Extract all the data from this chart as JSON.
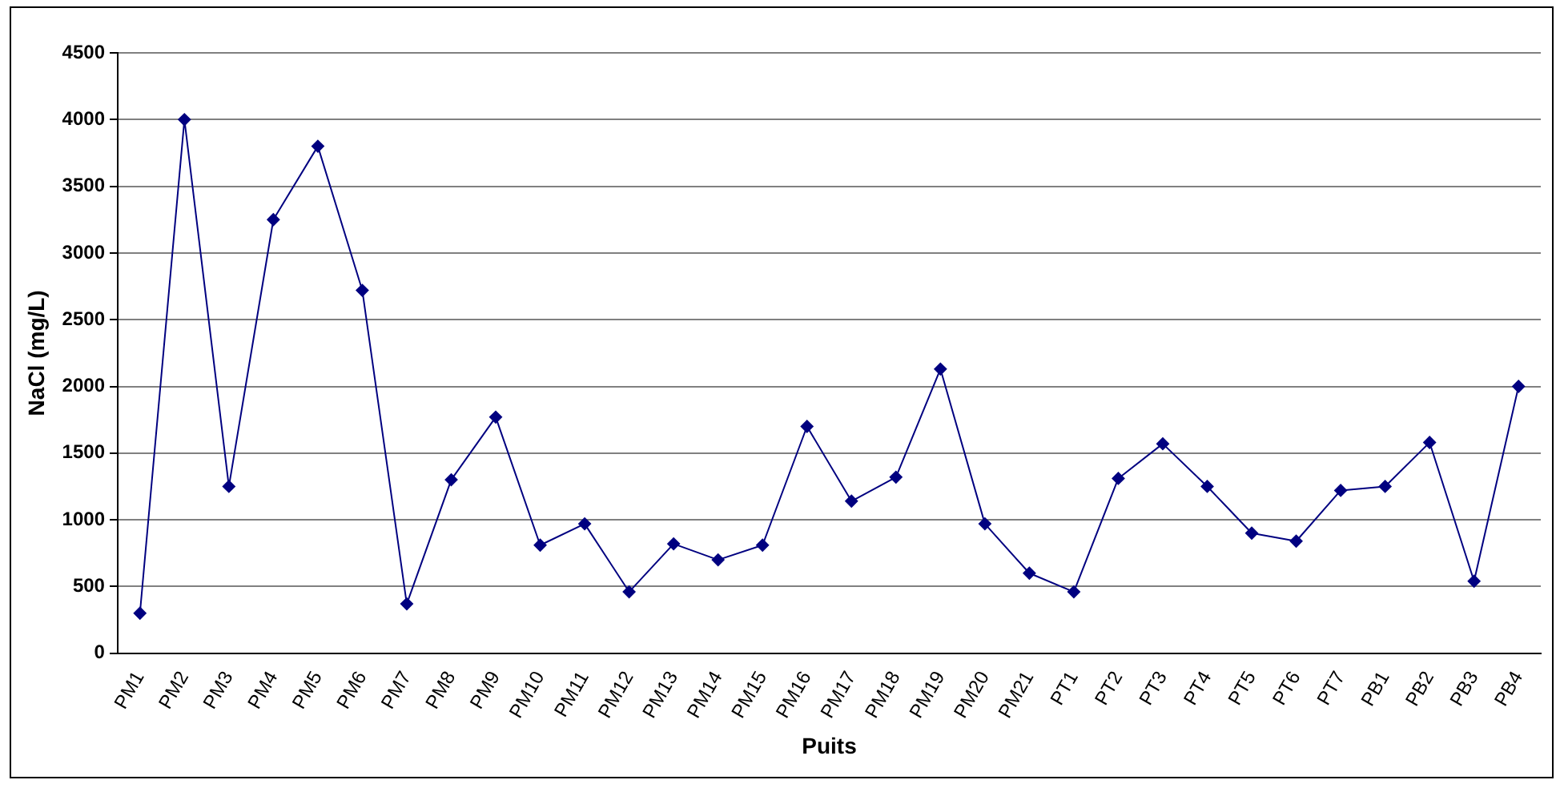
{
  "chart_data": {
    "type": "line",
    "xlabel": "Puits",
    "ylabel": "NaCl (mg/L)",
    "categories": [
      "PM1",
      "PM2",
      "PM3",
      "PM4",
      "PM5",
      "PM6",
      "PM7",
      "PM8",
      "PM9",
      "PM10",
      "PM11",
      "PM12",
      "PM13",
      "PM14",
      "PM15",
      "PM16",
      "PM17",
      "PM18",
      "PM19",
      "PM20",
      "PM21",
      "PT1",
      "PT2",
      "PT3",
      "PT4",
      "PT5",
      "PT6",
      "PT7",
      "PB1",
      "PB2",
      "PB3",
      "PB4"
    ],
    "series": [
      {
        "color": "#000080",
        "values": [
          300,
          4000,
          1250,
          3250,
          3800,
          2720,
          370,
          1300,
          1770,
          810,
          970,
          460,
          820,
          700,
          810,
          1700,
          1140,
          1320,
          2130,
          970,
          600,
          460,
          1310,
          1570,
          1250,
          900,
          840,
          1220,
          1250,
          1580,
          540,
          2000
        ]
      }
    ],
    "ylim": [
      0,
      4500
    ],
    "yticks": [
      0,
      500,
      1000,
      1500,
      2000,
      2500,
      3000,
      3500,
      4000,
      4500
    ],
    "grid": "y",
    "legend": false,
    "marker": "diamond",
    "line_style": "solid"
  }
}
